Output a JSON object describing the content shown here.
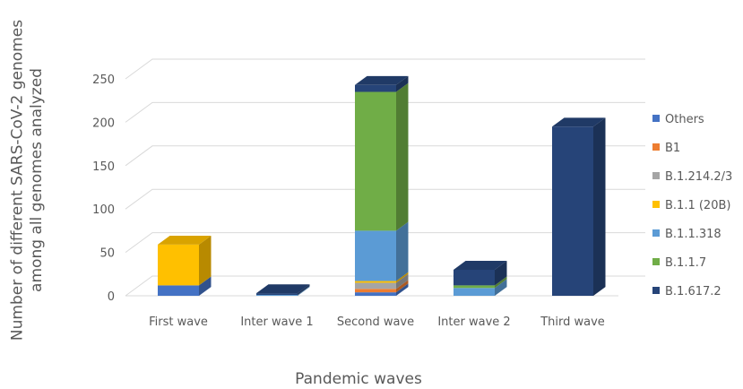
{
  "chart_data": {
    "type": "bar",
    "stacked": true,
    "style": "3d-column",
    "categories": [
      "First wave",
      "Inter wave 1",
      "Second wave",
      "Inter wave 2",
      "Third wave"
    ],
    "xlabel": "Pandemic waves",
    "ylabel": "Number of different SARS-CoV-2 genomes among all genomes analyzed",
    "ylim": [
      0,
      250
    ],
    "yticks": [
      0,
      50,
      100,
      150,
      200,
      250
    ],
    "grid": true,
    "legend_position": "right",
    "series": [
      {
        "name": "Others",
        "color": "#4472C4",
        "values": [
          12,
          0,
          4,
          0,
          0
        ]
      },
      {
        "name": "B1",
        "color": "#ED7D31",
        "values": [
          0,
          0,
          4,
          0,
          0
        ]
      },
      {
        "name": "B.1.214.2/3",
        "color": "#A5A5A5",
        "values": [
          0,
          0,
          7,
          0,
          0
        ]
      },
      {
        "name": "B.1.1 (20B)",
        "color": "#FFC000",
        "values": [
          47,
          0,
          2,
          0,
          0
        ]
      },
      {
        "name": "B.1.1.318",
        "color": "#5B9BD5",
        "values": [
          0,
          1,
          58,
          9,
          0
        ]
      },
      {
        "name": "B.1.1.7",
        "color": "#70AD47",
        "values": [
          0,
          0,
          160,
          3,
          0
        ]
      },
      {
        "name": "B.1.617.2",
        "color": "#264478",
        "values": [
          0,
          2,
          8,
          18,
          195
        ]
      }
    ]
  }
}
